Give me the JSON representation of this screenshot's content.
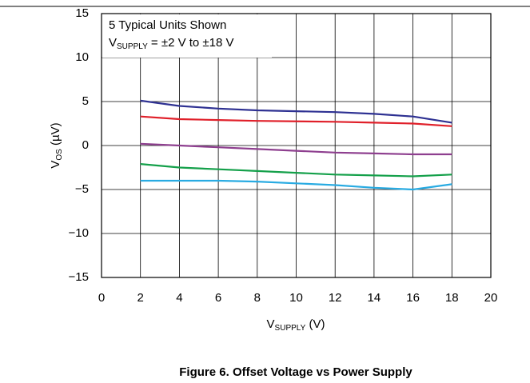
{
  "chart_data": {
    "type": "line",
    "title": "Figure 6. Offset Voltage vs Power Supply",
    "x_label": {
      "main": "V",
      "sub": "SUPPLY",
      "rest": " (V)"
    },
    "y_label": {
      "main": "V",
      "sub": "OS",
      "rest": " (µV)"
    },
    "annotation": {
      "line1": "5 Typical Units Shown",
      "main": "V",
      "sub": "SUPPLY",
      "rest": " = ±2 V to ±18 V"
    },
    "x": [
      2,
      4,
      6,
      8,
      10,
      12,
      14,
      16,
      18
    ],
    "series": [
      {
        "color": "#2e3192",
        "values": [
          5.1,
          4.5,
          4.2,
          4.0,
          3.9,
          3.8,
          3.6,
          3.3,
          2.6
        ]
      },
      {
        "color": "#e0202a",
        "values": [
          3.3,
          3.0,
          2.9,
          2.8,
          2.75,
          2.7,
          2.6,
          2.5,
          2.2
        ]
      },
      {
        "color": "#8e3f8f",
        "values": [
          0.2,
          0.0,
          -0.2,
          -0.4,
          -0.6,
          -0.8,
          -0.9,
          -1.0,
          -1.0
        ]
      },
      {
        "color": "#14a04a",
        "values": [
          -2.1,
          -2.5,
          -2.7,
          -2.9,
          -3.1,
          -3.3,
          -3.4,
          -3.5,
          -3.3
        ]
      },
      {
        "color": "#29abe2",
        "values": [
          -4.0,
          -4.0,
          -4.0,
          -4.1,
          -4.3,
          -4.5,
          -4.8,
          -5.0,
          -4.4
        ]
      }
    ],
    "xlim": [
      0,
      20
    ],
    "xticks": [
      0,
      2,
      4,
      6,
      8,
      10,
      12,
      14,
      16,
      18,
      20
    ],
    "ylim": [
      -15,
      15
    ],
    "yticks": [
      {
        "value": -15,
        "label": "−15"
      },
      {
        "value": -10,
        "label": "−10"
      },
      {
        "value": -5,
        "label": "−5"
      },
      0,
      5,
      10,
      15
    ],
    "grid": true
  }
}
